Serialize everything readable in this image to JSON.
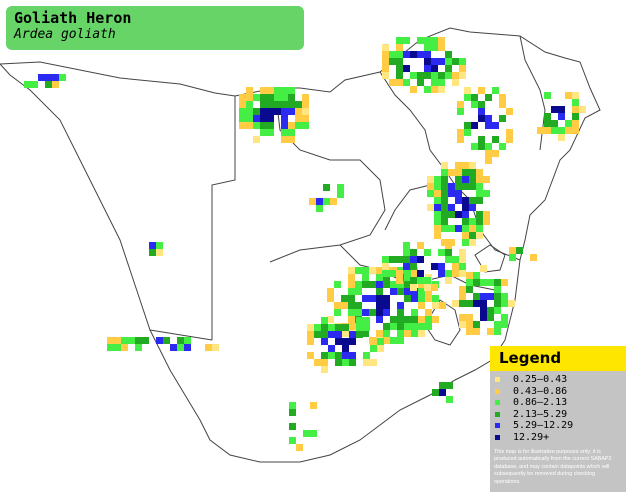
{
  "title": {
    "common_name": "Goliath Heron",
    "scientific_name": "Ardea goliath"
  },
  "colors": {
    "title_bg": "#66d466",
    "legend_header": "#ffe600",
    "legend_bg": "#c4c4c4",
    "border": "#444444"
  },
  "legend": {
    "title": "Legend",
    "items": [
      {
        "label": "0.25–0.43",
        "color": "#ffe680"
      },
      {
        "label": "0.43–0.86",
        "color": "#ffcc44"
      },
      {
        "label": "0.86–2.13",
        "color": "#44ee44"
      },
      {
        "label": "2.13–5.29",
        "color": "#22aa22"
      },
      {
        "label": "5.29–12.29",
        "color": "#2a2af0"
      },
      {
        "label": "12.29+",
        "color": "#0a0a90"
      }
    ],
    "disclaimer": "This map is for illustrative purposes only; it is produced automatically from the current SABAP2 database, and may contain datapoints which will subsequently be removed during checking operations."
  }
}
